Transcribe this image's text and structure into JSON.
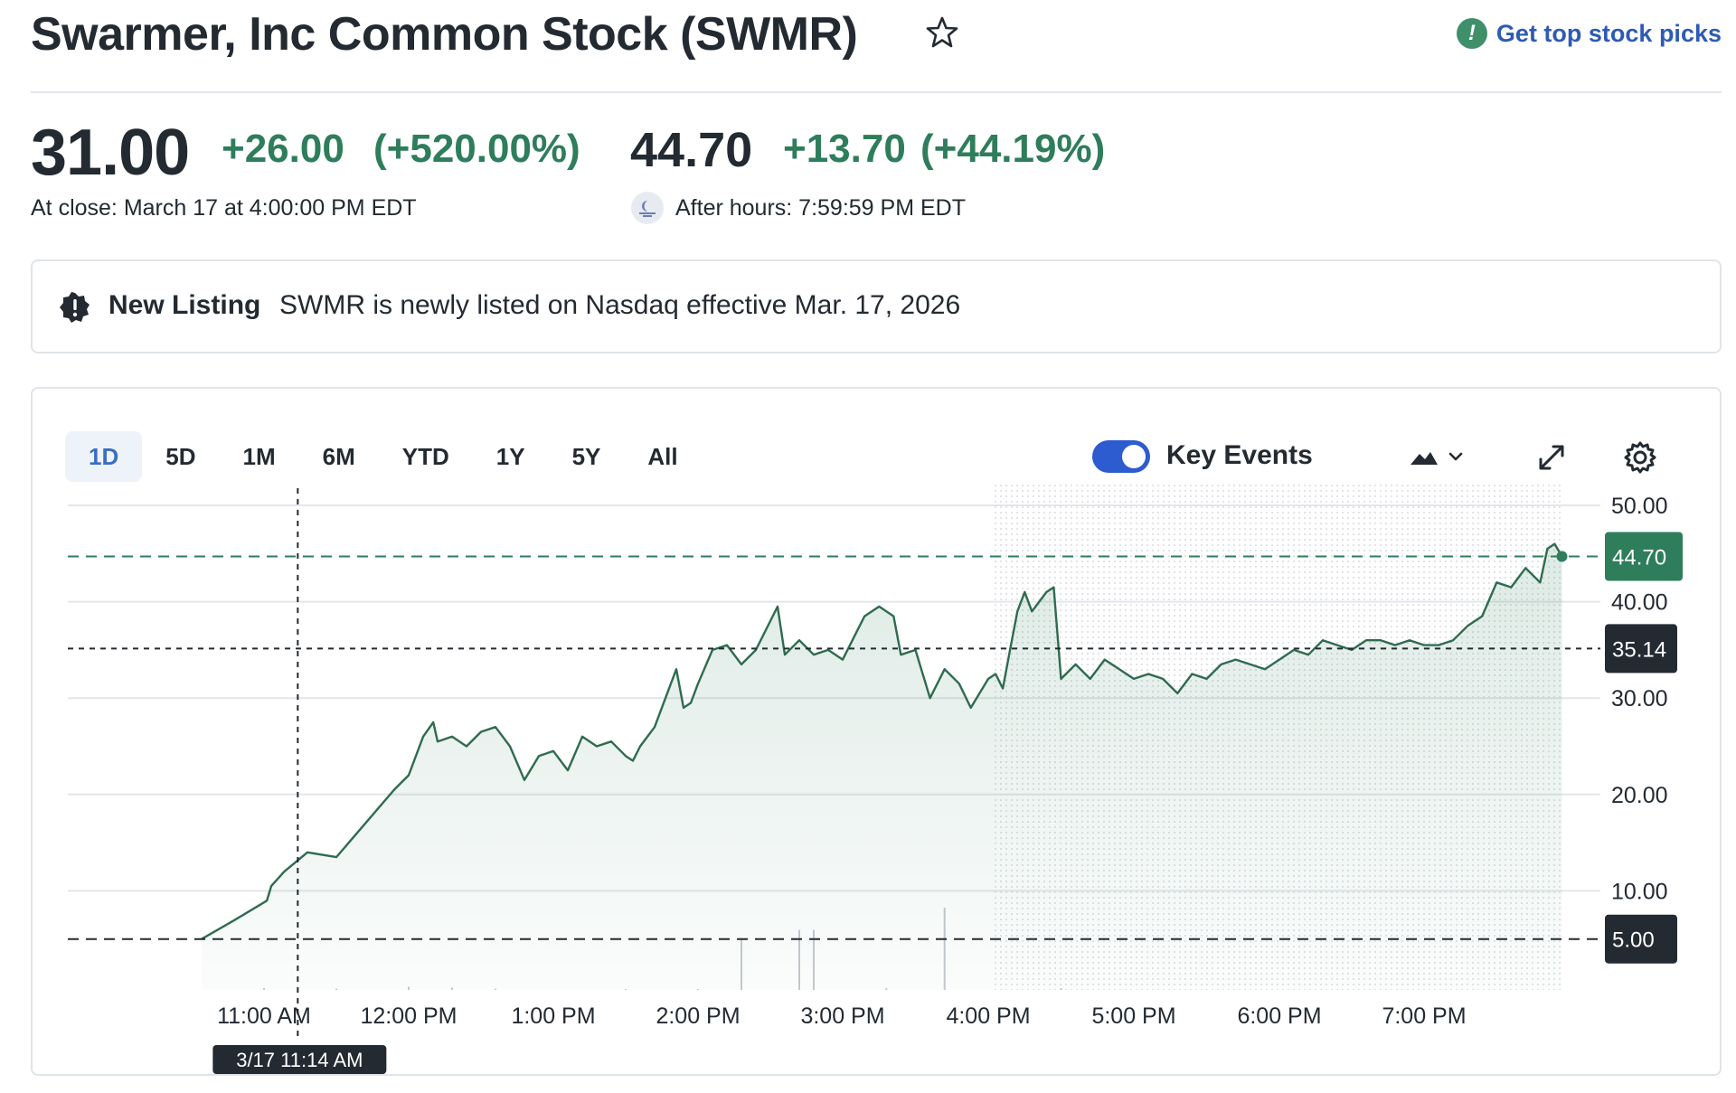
{
  "header": {
    "title": "Swarmer, Inc Common Stock (SWMR)",
    "star_icon": "star-outline-icon",
    "picks_label": "Get top stock picks",
    "picks_icon": "exclamation-badge-icon"
  },
  "quote": {
    "price": "31.00",
    "change": "+26.00",
    "change_pct": "(+520.00%)",
    "close_label": "At close: March 17 at 4:00:00 PM EDT",
    "ah_price": "44.70",
    "ah_change": "+13.70",
    "ah_change_pct": "(+44.19%)",
    "ah_label": "After hours: 7:59:59 PM EDT",
    "ah_icon": "moon-icon"
  },
  "notice": {
    "label": "New Listing",
    "text": "SWMR is newly listed on Nasdaq effective Mar. 17, 2026",
    "icon": "alert-badge-icon"
  },
  "toolbar": {
    "ranges": [
      "1D",
      "5D",
      "1M",
      "6M",
      "YTD",
      "1Y",
      "5Y",
      "All"
    ],
    "active_range": "1D",
    "key_events_label": "Key Events",
    "key_events_on": true,
    "chart_type_icon": "mountain-chart-icon",
    "dropdown_icon": "chevron-down-icon",
    "expand_icon": "expand-icon",
    "settings_icon": "gear-icon"
  },
  "colors": {
    "up": "#2e7d5b",
    "line": "#2f6b50",
    "accent_blue": "#2d5bd0",
    "dark_tag": "#232a31"
  },
  "chart_data": {
    "type": "area",
    "title": "",
    "xlabel": "",
    "ylabel": "",
    "x_ticks": [
      "11:00 AM",
      "12:00 PM",
      "1:00 PM",
      "2:00 PM",
      "3:00 PM",
      "4:00 PM",
      "5:00 PM",
      "6:00 PM",
      "7:00 PM"
    ],
    "y_ticks": [
      "50.00",
      "40.00",
      "30.00",
      "20.00",
      "10.00"
    ],
    "ylim": [
      0,
      50
    ],
    "x_range_hours": [
      10.57,
      19.99
    ],
    "after_hours_start": "4:00 PM",
    "reference_lines": [
      {
        "value": 44.7,
        "label": "44.70",
        "style": "current"
      },
      {
        "value": 35.14,
        "label": "35.14",
        "style": "crosshair"
      },
      {
        "value": 5.0,
        "label": "5.00",
        "style": "previous-close"
      }
    ],
    "crosshair": {
      "time": "11:14 AM",
      "label": "3/17 11:14 AM"
    },
    "grid": true,
    "series": [
      {
        "values": [
          [
            10.57,
            5.0
          ],
          [
            10.8,
            7.0
          ],
          [
            11.0,
            8.8
          ],
          [
            11.02,
            9.0
          ],
          [
            11.05,
            10.5
          ],
          [
            11.14,
            12.0
          ],
          [
            11.3,
            14.0
          ],
          [
            11.5,
            13.5
          ],
          [
            11.7,
            17.0
          ],
          [
            11.9,
            20.5
          ],
          [
            12.0,
            22.0
          ],
          [
            12.1,
            26.0
          ],
          [
            12.17,
            27.5
          ],
          [
            12.2,
            25.5
          ],
          [
            12.3,
            26.0
          ],
          [
            12.4,
            25.0
          ],
          [
            12.5,
            26.5
          ],
          [
            12.6,
            27.0
          ],
          [
            12.7,
            25.0
          ],
          [
            12.8,
            21.5
          ],
          [
            12.9,
            24.0
          ],
          [
            13.0,
            24.5
          ],
          [
            13.1,
            22.5
          ],
          [
            13.2,
            26.0
          ],
          [
            13.3,
            25.0
          ],
          [
            13.4,
            25.5
          ],
          [
            13.5,
            24.0
          ],
          [
            13.55,
            23.5
          ],
          [
            13.6,
            25.0
          ],
          [
            13.7,
            27.0
          ],
          [
            13.8,
            31.0
          ],
          [
            13.85,
            33.0
          ],
          [
            13.9,
            29.0
          ],
          [
            13.95,
            29.5
          ],
          [
            14.0,
            31.5
          ],
          [
            14.1,
            35.0
          ],
          [
            14.2,
            35.5
          ],
          [
            14.3,
            33.5
          ],
          [
            14.4,
            35.0
          ],
          [
            14.5,
            38.0
          ],
          [
            14.55,
            39.5
          ],
          [
            14.6,
            34.5
          ],
          [
            14.7,
            36.0
          ],
          [
            14.8,
            34.5
          ],
          [
            14.9,
            35.0
          ],
          [
            15.0,
            34.0
          ],
          [
            15.1,
            37.0
          ],
          [
            15.15,
            38.5
          ],
          [
            15.25,
            39.5
          ],
          [
            15.35,
            38.5
          ],
          [
            15.4,
            34.5
          ],
          [
            15.5,
            35.0
          ],
          [
            15.6,
            30.0
          ],
          [
            15.7,
            33.0
          ],
          [
            15.8,
            31.5
          ],
          [
            15.88,
            29.0
          ],
          [
            16.0,
            32.0
          ],
          [
            16.05,
            32.5
          ],
          [
            16.1,
            31.0
          ],
          [
            16.15,
            35.0
          ],
          [
            16.2,
            39.0
          ],
          [
            16.25,
            41.0
          ],
          [
            16.3,
            39.0
          ],
          [
            16.4,
            41.0
          ],
          [
            16.45,
            41.5
          ],
          [
            16.5,
            32.0
          ],
          [
            16.6,
            33.5
          ],
          [
            16.7,
            32.0
          ],
          [
            16.8,
            34.0
          ],
          [
            16.9,
            33.0
          ],
          [
            17.0,
            32.0
          ],
          [
            17.1,
            32.5
          ],
          [
            17.2,
            32.0
          ],
          [
            17.3,
            30.5
          ],
          [
            17.4,
            32.5
          ],
          [
            17.5,
            32.0
          ],
          [
            17.6,
            33.5
          ],
          [
            17.7,
            34.0
          ],
          [
            17.8,
            33.5
          ],
          [
            17.9,
            33.0
          ],
          [
            18.0,
            34.0
          ],
          [
            18.1,
            35.0
          ],
          [
            18.2,
            34.5
          ],
          [
            18.3,
            36.0
          ],
          [
            18.4,
            35.5
          ],
          [
            18.5,
            35.0
          ],
          [
            18.6,
            36.0
          ],
          [
            18.7,
            36.0
          ],
          [
            18.8,
            35.5
          ],
          [
            18.9,
            36.0
          ],
          [
            19.0,
            35.5
          ],
          [
            19.1,
            35.5
          ],
          [
            19.2,
            36.0
          ],
          [
            19.3,
            37.5
          ],
          [
            19.4,
            38.5
          ],
          [
            19.5,
            42.0
          ],
          [
            19.6,
            41.5
          ],
          [
            19.7,
            43.5
          ],
          [
            19.8,
            42.0
          ],
          [
            19.85,
            45.5
          ],
          [
            19.9,
            46.0
          ],
          [
            19.95,
            44.7
          ]
        ]
      }
    ],
    "volume": [
      [
        11.0,
        0.3
      ],
      [
        11.5,
        0.2
      ],
      [
        12.0,
        0.5
      ],
      [
        12.3,
        0.4
      ],
      [
        12.6,
        0.2
      ],
      [
        13.5,
        0.15
      ],
      [
        14.0,
        0.15
      ],
      [
        14.3,
        8.0
      ],
      [
        14.7,
        9.5
      ],
      [
        14.8,
        9.5
      ],
      [
        15.3,
        0.3
      ],
      [
        15.7,
        13.0
      ],
      [
        16.5,
        0.3
      ]
    ]
  }
}
